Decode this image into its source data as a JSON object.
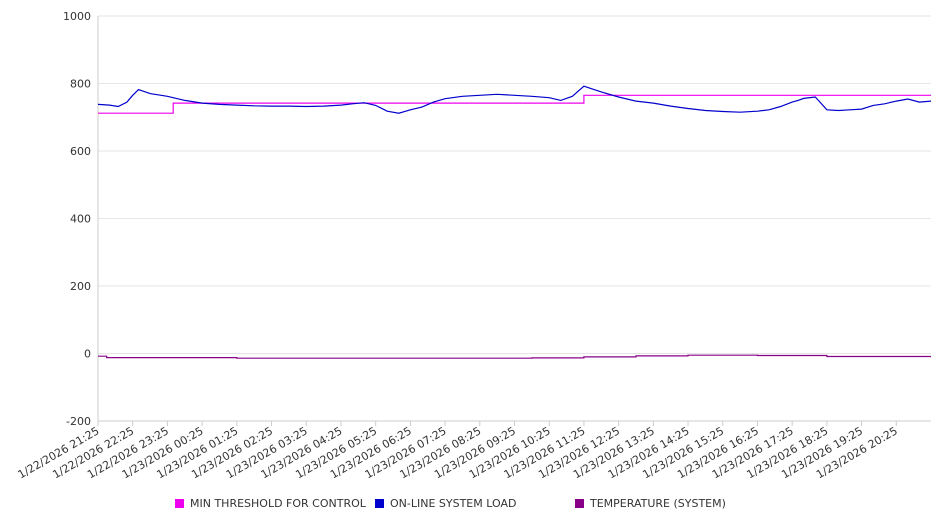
{
  "chart_data": {
    "type": "line",
    "title": "",
    "xlabel": "",
    "ylabel": "",
    "ylim": [
      -200,
      1000
    ],
    "yticks": [
      -200,
      0,
      200,
      400,
      600,
      800,
      1000
    ],
    "grid": "horizontal",
    "legend_position": "bottom",
    "x_tick_labels": [
      "1/22/2026 21:25",
      "1/22/2026 22:25",
      "1/22/2026 23:25",
      "1/23/2026 00:25",
      "1/23/2026 01:25",
      "1/23/2026 02:25",
      "1/23/2026 03:25",
      "1/23/2026 04:25",
      "1/23/2026 05:25",
      "1/23/2026 06:25",
      "1/23/2026 07:25",
      "1/23/2026 08:25",
      "1/23/2026 09:25",
      "1/23/2026 10:25",
      "1/23/2026 11:25",
      "1/23/2026 12:25",
      "1/23/2026 13:25",
      "1/23/2026 14:25",
      "1/23/2026 15:25",
      "1/23/2026 16:25",
      "1/23/2026 17:25",
      "1/23/2026 18:25",
      "1/23/2026 19:25",
      "1/23/2026 20:25"
    ],
    "x_range": [
      "1/22/2026 21:25",
      "1/23/2026 21:25"
    ],
    "series": [
      {
        "name": "MIN THRESHOLD FOR CONTROL",
        "color": "#ee00ee",
        "step": true,
        "x": [
          "1/22/2026 21:25",
          "1/22/2026 22:35",
          "1/22/2026 23:35",
          "1/23/2026 11:25",
          "1/23/2026 21:25"
        ],
        "values": [
          712,
          712,
          742,
          765,
          765
        ]
      },
      {
        "name": "ON-LINE SYSTEM LOAD",
        "color": "#0000cc",
        "step": false,
        "x": [
          "1/22/2026 21:25",
          "1/22/2026 21:45",
          "1/22/2026 22:00",
          "1/22/2026 22:15",
          "1/22/2026 22:25",
          "1/22/2026 22:35",
          "1/22/2026 22:55",
          "1/22/2026 23:25",
          "1/22/2026 23:55",
          "1/23/2026 00:25",
          "1/23/2026 00:55",
          "1/23/2026 01:25",
          "1/23/2026 01:55",
          "1/23/2026 02:25",
          "1/23/2026 02:55",
          "1/23/2026 03:25",
          "1/23/2026 03:55",
          "1/23/2026 04:25",
          "1/23/2026 04:45",
          "1/23/2026 05:05",
          "1/23/2026 05:25",
          "1/23/2026 05:45",
          "1/23/2026 06:05",
          "1/23/2026 06:25",
          "1/23/2026 06:45",
          "1/23/2026 07:05",
          "1/23/2026 07:25",
          "1/23/2026 07:55",
          "1/23/2026 08:25",
          "1/23/2026 08:55",
          "1/23/2026 09:25",
          "1/23/2026 09:55",
          "1/23/2026 10:25",
          "1/23/2026 10:45",
          "1/23/2026 11:05",
          "1/23/2026 11:25",
          "1/23/2026 11:55",
          "1/23/2026 12:25",
          "1/23/2026 12:55",
          "1/23/2026 13:25",
          "1/23/2026 13:55",
          "1/23/2026 14:25",
          "1/23/2026 14:55",
          "1/23/2026 15:25",
          "1/23/2026 15:55",
          "1/23/2026 16:25",
          "1/23/2026 16:45",
          "1/23/2026 17:05",
          "1/23/2026 17:25",
          "1/23/2026 17:35",
          "1/23/2026 17:45",
          "1/23/2026 18:05",
          "1/23/2026 18:25",
          "1/23/2026 18:45",
          "1/23/2026 19:05",
          "1/23/2026 19:25",
          "1/23/2026 19:45",
          "1/23/2026 20:05",
          "1/23/2026 20:25",
          "1/23/2026 20:45",
          "1/23/2026 21:05",
          "1/23/2026 21:25"
        ],
        "values": [
          738,
          736,
          732,
          745,
          765,
          782,
          770,
          762,
          750,
          742,
          738,
          736,
          734,
          733,
          733,
          732,
          733,
          736,
          740,
          743,
          735,
          718,
          712,
          722,
          730,
          745,
          755,
          762,
          765,
          768,
          765,
          762,
          758,
          750,
          762,
          792,
          775,
          760,
          748,
          742,
          733,
          726,
          720,
          717,
          715,
          718,
          722,
          732,
          745,
          750,
          756,
          760,
          722,
          720,
          722,
          724,
          735,
          740,
          748,
          754,
          745,
          748
        ]
      },
      {
        "name": "TEMPERATURE (SYSTEM)",
        "color": "#880088",
        "step": true,
        "x": [
          "1/22/2026 21:25",
          "1/22/2026 21:40",
          "1/23/2026 01:25",
          "1/23/2026 09:55",
          "1/23/2026 11:25",
          "1/23/2026 12:55",
          "1/23/2026 14:25",
          "1/23/2026 16:25",
          "1/23/2026 18:25",
          "1/23/2026 21:25"
        ],
        "values": [
          -8,
          -12,
          -14,
          -13,
          -10,
          -7,
          -5,
          -6,
          -9,
          -9
        ]
      }
    ]
  }
}
